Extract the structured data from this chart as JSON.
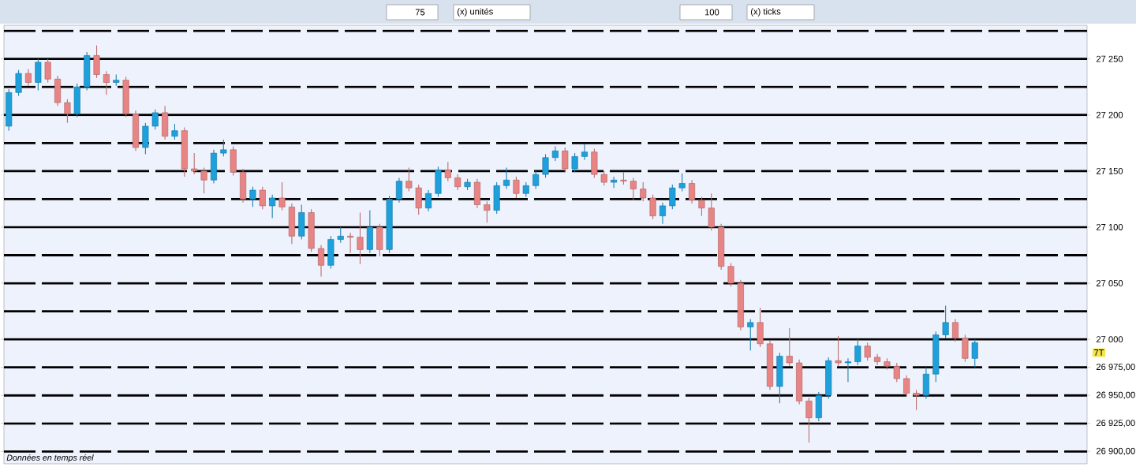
{
  "chart_data": {
    "type": "candlestick",
    "categories": [
      null,
      null,
      null,
      null,
      null,
      null,
      null,
      null,
      null,
      null,
      null,
      null,
      null,
      null,
      null,
      null,
      null,
      null,
      null,
      null,
      null,
      null,
      null,
      null,
      null,
      null,
      null,
      null,
      null,
      null,
      null,
      null,
      null,
      null,
      null,
      null,
      null,
      null,
      null,
      null,
      null,
      null,
      null,
      null,
      null,
      null,
      null,
      null,
      null,
      null,
      null,
      null,
      null,
      null,
      null,
      null,
      null,
      null,
      null,
      null,
      null,
      null,
      null,
      null,
      null,
      null,
      null,
      null,
      null,
      null,
      null,
      null,
      null,
      null,
      null,
      null,
      null,
      null,
      null,
      null,
      null,
      null,
      null,
      null,
      null,
      null,
      null,
      null,
      null,
      null,
      null,
      null,
      null,
      null,
      null,
      null,
      null,
      null,
      null,
      null,
      null,
      null,
      null,
      null,
      null,
      null,
      null,
      null,
      null,
      null,
      null
    ],
    "ohlc": [
      [
        27190,
        27223,
        27186,
        27220
      ],
      [
        27220,
        27240,
        27217,
        27237
      ],
      [
        27237,
        27241,
        27226,
        27229
      ],
      [
        27229,
        27250,
        27222,
        27247
      ],
      [
        27247,
        27250,
        27229,
        27232
      ],
      [
        27232,
        27235,
        27208,
        27211
      ],
      [
        27211,
        27214,
        27193,
        27201
      ],
      [
        27201,
        27228,
        27198,
        27225
      ],
      [
        27225,
        27256,
        27222,
        27253
      ],
      [
        27253,
        27262,
        27233,
        27236
      ],
      [
        27236,
        27239,
        27218,
        27229
      ],
      [
        27229,
        27236,
        27226,
        27231
      ],
      [
        27231,
        27234,
        27198,
        27201
      ],
      [
        27201,
        27204,
        27168,
        27171
      ],
      [
        27171,
        27193,
        27165,
        27190
      ],
      [
        27190,
        27205,
        27187,
        27202
      ],
      [
        27202,
        27208,
        27178,
        27181
      ],
      [
        27181,
        27192,
        27178,
        27186
      ],
      [
        27186,
        27189,
        27145,
        27152
      ],
      [
        27152,
        27166,
        27147,
        27150
      ],
      [
        27150,
        27153,
        27130,
        27142
      ],
      [
        27142,
        27169,
        27139,
        27166
      ],
      [
        27166,
        27178,
        27163,
        27169
      ],
      [
        27169,
        27172,
        27146,
        27149
      ],
      [
        27149,
        27152,
        27122,
        27125
      ],
      [
        27125,
        27136,
        27118,
        27133
      ],
      [
        27133,
        27136,
        27116,
        27119
      ],
      [
        27119,
        27129,
        27108,
        27126
      ],
      [
        27126,
        27140,
        27115,
        27118
      ],
      [
        27118,
        27121,
        27085,
        27092
      ],
      [
        27092,
        27120,
        27089,
        27113
      ],
      [
        27113,
        27116,
        27078,
        27081
      ],
      [
        27081,
        27084,
        27056,
        27066
      ],
      [
        27066,
        27092,
        27063,
        27089
      ],
      [
        27089,
        27100,
        27086,
        27092
      ],
      [
        27092,
        27095,
        27077,
        27091
      ],
      [
        27091,
        27113,
        27067,
        27080
      ],
      [
        27080,
        27115,
        27077,
        27100
      ],
      [
        27100,
        27103,
        27074,
        27080
      ],
      [
        27080,
        27128,
        27077,
        27125
      ],
      [
        27125,
        27144,
        27122,
        27141
      ],
      [
        27141,
        27153,
        27132,
        27135
      ],
      [
        27135,
        27138,
        27111,
        27117
      ],
      [
        27117,
        27133,
        27114,
        27130
      ],
      [
        27130,
        27154,
        27127,
        27151
      ],
      [
        27151,
        27158,
        27141,
        27144
      ],
      [
        27144,
        27147,
        27133,
        27136
      ],
      [
        27136,
        27143,
        27133,
        27140
      ],
      [
        27140,
        27143,
        27117,
        27120
      ],
      [
        27120,
        27123,
        27104,
        27115
      ],
      [
        27115,
        27140,
        27112,
        27137
      ],
      [
        27137,
        27153,
        27134,
        27142
      ],
      [
        27142,
        27145,
        27126,
        27130
      ],
      [
        27130,
        27140,
        27127,
        27137
      ],
      [
        27137,
        27150,
        27134,
        27147
      ],
      [
        27147,
        27165,
        27144,
        27162
      ],
      [
        27162,
        27172,
        27159,
        27168
      ],
      [
        27168,
        27171,
        27149,
        27152
      ],
      [
        27152,
        27166,
        27149,
        27163
      ],
      [
        27163,
        27174,
        27160,
        27167
      ],
      [
        27167,
        27170,
        27144,
        27147
      ],
      [
        27147,
        27150,
        27137,
        27140
      ],
      [
        27140,
        27145,
        27135,
        27142
      ],
      [
        27142,
        27149,
        27138,
        27141
      ],
      [
        27141,
        27144,
        27124,
        27134
      ],
      [
        27134,
        27140,
        27123,
        27126
      ],
      [
        27126,
        27129,
        27107,
        27110
      ],
      [
        27110,
        27122,
        27103,
        27119
      ],
      [
        27119,
        27138,
        27116,
        27135
      ],
      [
        27135,
        27148,
        27132,
        27139
      ],
      [
        27139,
        27142,
        27121,
        27124
      ],
      [
        27124,
        27127,
        27110,
        27117
      ],
      [
        27117,
        27130,
        27097,
        27100
      ],
      [
        27100,
        27103,
        27062,
        27065
      ],
      [
        27065,
        27068,
        27047,
        27050
      ],
      [
        27050,
        27053,
        27008,
        27011
      ],
      [
        27011,
        27018,
        26990,
        27015
      ],
      [
        27015,
        27028,
        26993,
        26996
      ],
      [
        26996,
        26999,
        26955,
        26958
      ],
      [
        26958,
        26988,
        26943,
        26985
      ],
      [
        26985,
        27010,
        26976,
        26979
      ],
      [
        26979,
        26982,
        26942,
        26945
      ],
      [
        26945,
        26948,
        26908,
        26930
      ],
      [
        26930,
        26953,
        26927,
        26950
      ],
      [
        26950,
        26984,
        26947,
        26981
      ],
      [
        26981,
        27003,
        26976,
        26979
      ],
      [
        26979,
        26983,
        26962,
        26980
      ],
      [
        26980,
        27000,
        26977,
        26994
      ],
      [
        26994,
        26997,
        26981,
        26984
      ],
      [
        26984,
        26987,
        26977,
        26980
      ],
      [
        26980,
        26983,
        26973,
        26976
      ],
      [
        26976,
        26979,
        26962,
        26965
      ],
      [
        26965,
        26968,
        26949,
        26952
      ],
      [
        26952,
        26955,
        26937,
        26950
      ],
      [
        26950,
        26975,
        26947,
        26969
      ],
      [
        26969,
        27007,
        26962,
        27004
      ],
      [
        27004,
        27030,
        27001,
        27015
      ],
      [
        27015,
        27018,
        26998,
        27001
      ],
      [
        27001,
        27004,
        26980,
        26983
      ],
      [
        26983,
        27000,
        26975,
        26997
      ],
      null,
      null,
      null,
      null,
      null,
      null,
      null,
      null,
      null,
      null,
      null
    ],
    "colors": [
      "#1ea0dc",
      "#1ea0dc",
      "#e98484",
      "#1ea0dc",
      "#e98484",
      "#e98484",
      "#e98484",
      "#1ea0dc",
      "#1ea0dc",
      "#e98484",
      "#e98484",
      "#1ea0dc",
      "#e98484",
      "#e98484",
      "#1ea0dc",
      "#1ea0dc",
      "#e98484",
      "#1ea0dc",
      "#e98484",
      "#e98484",
      "#e98484",
      "#1ea0dc",
      "#1ea0dc",
      "#e98484",
      "#e98484",
      "#1ea0dc",
      "#e98484",
      "#1ea0dc",
      "#e98484",
      "#e98484",
      "#1ea0dc",
      "#e98484",
      "#e98484",
      "#1ea0dc",
      "#1ea0dc",
      "#e98484",
      "#e98484",
      "#1ea0dc",
      "#e98484",
      "#1ea0dc",
      "#1ea0dc",
      "#e98484",
      "#e98484",
      "#1ea0dc",
      "#1ea0dc",
      "#e98484",
      "#e98484",
      "#1ea0dc",
      "#e98484",
      "#e98484",
      "#1ea0dc",
      "#1ea0dc",
      "#e98484",
      "#1ea0dc",
      "#1ea0dc",
      "#1ea0dc",
      "#1ea0dc",
      "#e98484",
      "#1ea0dc",
      "#1ea0dc",
      "#e98484",
      "#e98484",
      "#1ea0dc",
      "#e98484",
      "#e98484",
      "#e98484",
      "#e98484",
      "#1ea0dc",
      "#1ea0dc",
      "#1ea0dc",
      "#e98484",
      "#e98484",
      "#e98484",
      "#e98484",
      "#e98484",
      "#e98484",
      "#1ea0dc",
      "#e98484",
      "#e98484",
      "#1ea0dc",
      "#e98484",
      "#e98484",
      "#e98484",
      "#1ea0dc",
      "#1ea0dc",
      "#e98484",
      "#1ea0dc",
      "#1ea0dc",
      "#e98484",
      "#e98484",
      "#e98484",
      "#e98484",
      "#e98484",
      "#e98484",
      "#1ea0dc",
      "#1ea0dc",
      "#1ea0dc",
      "#e98484",
      "#e98484",
      "#1ea0dc",
      null,
      null,
      null,
      null,
      null,
      null,
      null,
      null,
      null,
      null,
      null
    ],
    "ylim": [
      26889,
      27280
    ],
    "yticks": [
      {
        "value": 27250,
        "label": "27 250"
      },
      {
        "value": 27200,
        "label": "27 200"
      },
      {
        "value": 27150,
        "label": "27 150"
      },
      {
        "value": 27100,
        "label": "27 100"
      },
      {
        "value": 27050,
        "label": "27 050"
      },
      {
        "value": 27000,
        "label": "27 000"
      },
      {
        "value": 26975,
        "label": "26 975,00"
      },
      {
        "value": 26950,
        "label": "26 950,00"
      },
      {
        "value": 26925,
        "label": "26 925,00"
      },
      {
        "value": 26900,
        "label": "26 900,00"
      }
    ],
    "ref_lines": [
      {
        "axis": "y",
        "value": 27275,
        "color": "#000000",
        "line_style": "dashed"
      },
      {
        "axis": "y",
        "value": 27250,
        "color": "#000000",
        "line_style": "solid"
      },
      {
        "axis": "y",
        "value": 27225,
        "color": "#000000",
        "line_style": "dashed"
      },
      {
        "axis": "y",
        "value": 27200,
        "color": "#000000",
        "line_style": "solid"
      },
      {
        "axis": "y",
        "value": 27175,
        "color": "#000000",
        "line_style": "dashed"
      },
      {
        "axis": "y",
        "value": 27150,
        "color": "#000000",
        "line_style": "dashed"
      },
      {
        "axis": "y",
        "value": 27125,
        "color": "#000000",
        "line_style": "dashed"
      },
      {
        "axis": "y",
        "value": 27100,
        "color": "#000000",
        "line_style": "solid"
      },
      {
        "axis": "y",
        "value": 27075,
        "color": "#000000",
        "line_style": "dashed"
      },
      {
        "axis": "y",
        "value": 27050,
        "color": "#000000",
        "line_style": "dashed"
      },
      {
        "axis": "y",
        "value": 27025,
        "color": "#000000",
        "line_style": "dashed"
      },
      {
        "axis": "y",
        "value": 27000,
        "color": "#000000",
        "line_style": "solid"
      },
      {
        "axis": "y",
        "value": 26975,
        "color": "#000000",
        "line_style": "dashed"
      },
      {
        "axis": "y",
        "value": 26950,
        "color": "#000000",
        "line_style": "dashed"
      },
      {
        "axis": "y",
        "value": 26925,
        "color": "#000000",
        "line_style": "dashed"
      },
      {
        "axis": "y",
        "value": 26900,
        "color": "#000000",
        "line_style": "dashed"
      }
    ],
    "annotations": [
      "75",
      "(x) unités",
      "100",
      "(x) ticks",
      "7T",
      "Données en temps réel"
    ]
  }
}
